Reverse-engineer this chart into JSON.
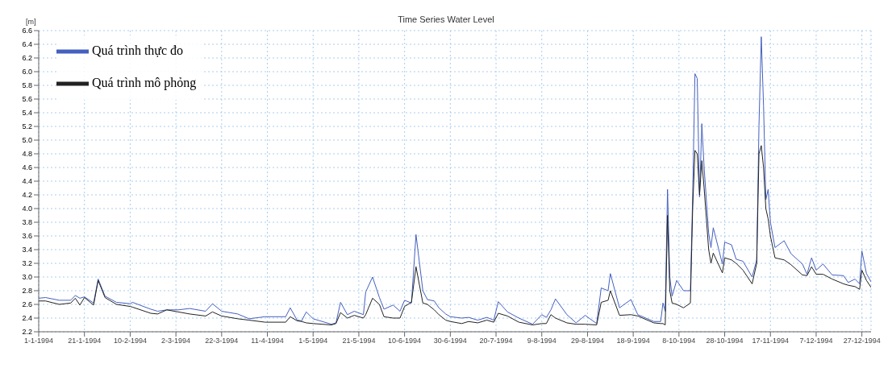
{
  "chart_data": {
    "type": "line",
    "title": "Time Series Water Level",
    "ylabel": "[m]",
    "x": [
      "1994-01-01",
      "1994-01-04",
      "1994-01-10",
      "1994-01-15",
      "1994-01-17",
      "1994-01-19",
      "1994-01-21",
      "1994-01-25",
      "1994-01-27",
      "1994-01-30",
      "1994-02-04",
      "1994-02-10",
      "1994-02-11",
      "1994-02-19",
      "1994-02-22",
      "1994-02-26",
      "1994-03-03",
      "1994-03-08",
      "1994-03-15",
      "1994-03-18",
      "1994-03-22",
      "1994-03-29",
      "1994-04-03",
      "1994-04-10",
      "1994-04-14",
      "1994-04-19",
      "1994-04-21",
      "1994-04-24",
      "1994-04-26",
      "1994-04-28",
      "1994-05-01",
      "1994-05-09",
      "1994-05-11",
      "1994-05-13",
      "1994-05-16",
      "1994-05-19",
      "1994-05-23",
      "1994-05-24",
      "1994-05-27",
      "1994-05-30",
      "1994-06-01",
      "1994-06-05",
      "1994-06-08",
      "1994-06-10",
      "1994-06-13",
      "1994-06-15",
      "1994-06-18",
      "1994-06-20",
      "1994-06-23",
      "1994-06-25",
      "1994-06-28",
      "1994-06-30",
      "1994-07-05",
      "1994-07-08",
      "1994-07-12",
      "1994-07-16",
      "1994-07-19",
      "1994-07-21",
      "1994-07-25",
      "1994-07-30",
      "1994-08-05",
      "1994-08-09",
      "1994-08-11",
      "1994-08-13",
      "1994-08-15",
      "1994-08-20",
      "1994-08-24",
      "1994-08-28",
      "1994-09-02",
      "1994-09-04",
      "1994-09-07",
      "1994-09-08",
      "1994-09-12",
      "1994-09-17",
      "1994-09-20",
      "1994-09-27",
      "1994-09-30",
      "1994-10-01",
      "1994-10-02",
      "1994-10-03",
      "1994-10-04",
      "1994-10-05",
      "1994-10-07",
      "1994-10-10",
      "1994-10-13",
      "1994-10-14",
      "1994-10-15",
      "1994-10-16",
      "1994-10-17",
      "1994-10-18",
      "1994-10-19",
      "1994-10-21",
      "1994-10-22",
      "1994-10-23",
      "1994-10-27",
      "1994-10-28",
      "1994-10-31",
      "1994-11-02",
      "1994-11-05",
      "1994-11-09",
      "1994-11-11",
      "1994-11-12",
      "1994-11-13",
      "1994-11-14",
      "1994-11-15",
      "1994-11-16",
      "1994-11-17",
      "1994-11-19",
      "1994-11-23",
      "1994-11-26",
      "1994-12-01",
      "1994-12-03",
      "1994-12-05",
      "1994-12-07",
      "1994-12-10",
      "1994-12-14",
      "1994-12-19",
      "1994-12-21",
      "1994-12-24",
      "1994-12-26",
      "1994-12-27",
      "1994-12-29",
      "1994-12-31"
    ],
    "series": [
      {
        "name": "Quá trình thực đo",
        "color": "#4460c0",
        "values": [
          2.69,
          2.7,
          2.66,
          2.66,
          2.73,
          2.69,
          2.71,
          2.62,
          2.97,
          2.72,
          2.63,
          2.61,
          2.63,
          2.53,
          2.5,
          2.52,
          2.52,
          2.54,
          2.5,
          2.61,
          2.5,
          2.46,
          2.39,
          2.42,
          2.42,
          2.42,
          2.55,
          2.37,
          2.36,
          2.49,
          2.39,
          2.31,
          2.33,
          2.63,
          2.45,
          2.5,
          2.45,
          2.78,
          3.0,
          2.7,
          2.53,
          2.59,
          2.5,
          2.66,
          2.62,
          3.62,
          2.8,
          2.67,
          2.65,
          2.55,
          2.46,
          2.42,
          2.4,
          2.41,
          2.37,
          2.41,
          2.37,
          2.64,
          2.49,
          2.4,
          2.31,
          2.45,
          2.41,
          2.52,
          2.68,
          2.45,
          2.33,
          2.44,
          2.32,
          2.84,
          2.8,
          3.05,
          2.55,
          2.67,
          2.45,
          2.35,
          2.35,
          2.62,
          2.5,
          4.28,
          3.0,
          2.72,
          2.95,
          2.8,
          2.8,
          4.2,
          5.97,
          5.9,
          4.17,
          5.24,
          4.6,
          3.64,
          3.43,
          3.72,
          3.19,
          3.51,
          3.47,
          3.26,
          3.23,
          3.0,
          3.25,
          5.22,
          6.51,
          5.5,
          4.13,
          4.28,
          3.8,
          3.43,
          3.53,
          3.34,
          3.19,
          3.04,
          3.28,
          3.1,
          3.19,
          3.03,
          3.02,
          2.92,
          2.97,
          2.9,
          3.38,
          3.05,
          2.93
        ]
      },
      {
        "name": "Quá trình mô phỏng",
        "color": "#222222",
        "values": [
          2.65,
          2.65,
          2.6,
          2.62,
          2.69,
          2.59,
          2.7,
          2.59,
          2.95,
          2.7,
          2.6,
          2.57,
          2.56,
          2.47,
          2.46,
          2.52,
          2.49,
          2.46,
          2.43,
          2.49,
          2.43,
          2.39,
          2.37,
          2.34,
          2.34,
          2.34,
          2.42,
          2.36,
          2.35,
          2.33,
          2.32,
          2.3,
          2.32,
          2.48,
          2.4,
          2.44,
          2.4,
          2.45,
          2.69,
          2.6,
          2.42,
          2.4,
          2.4,
          2.57,
          2.63,
          3.15,
          2.62,
          2.6,
          2.52,
          2.45,
          2.37,
          2.35,
          2.32,
          2.35,
          2.33,
          2.37,
          2.34,
          2.47,
          2.43,
          2.34,
          2.3,
          2.32,
          2.32,
          2.45,
          2.4,
          2.33,
          2.31,
          2.31,
          2.3,
          2.63,
          2.66,
          2.8,
          2.44,
          2.45,
          2.43,
          2.33,
          2.32,
          2.32,
          2.3,
          3.9,
          2.8,
          2.62,
          2.6,
          2.55,
          2.62,
          4.0,
          4.85,
          4.8,
          4.2,
          4.7,
          4.3,
          3.4,
          3.2,
          3.35,
          3.06,
          3.28,
          3.25,
          3.2,
          3.1,
          2.9,
          3.2,
          4.8,
          4.92,
          4.6,
          4.0,
          3.85,
          3.6,
          3.28,
          3.25,
          3.18,
          3.03,
          3.02,
          3.15,
          3.04,
          3.04,
          2.97,
          2.9,
          2.88,
          2.86,
          2.82,
          3.1,
          2.95,
          2.85
        ]
      }
    ],
    "xlim": [
      "1994-01-01",
      "1994-12-31"
    ],
    "xticks": [
      {
        "value": "1994-01-01",
        "label": "1-1-1994"
      },
      {
        "value": "1994-01-21",
        "label": "21-1-1994"
      },
      {
        "value": "1994-02-10",
        "label": "10-2-1994"
      },
      {
        "value": "1994-03-02",
        "label": "2-3-1994"
      },
      {
        "value": "1994-03-22",
        "label": "22-3-1994"
      },
      {
        "value": "1994-04-11",
        "label": "11-4-1994"
      },
      {
        "value": "1994-05-01",
        "label": "1-5-1994"
      },
      {
        "value": "1994-05-21",
        "label": "21-5-1994"
      },
      {
        "value": "1994-06-10",
        "label": "10-6-1994"
      },
      {
        "value": "1994-06-30",
        "label": "30-6-1994"
      },
      {
        "value": "1994-07-20",
        "label": "20-7-1994"
      },
      {
        "value": "1994-08-09",
        "label": "9-8-1994"
      },
      {
        "value": "1994-08-29",
        "label": "29-8-1994"
      },
      {
        "value": "1994-09-18",
        "label": "18-9-1994"
      },
      {
        "value": "1994-10-08",
        "label": "8-10-1994"
      },
      {
        "value": "1994-10-28",
        "label": "28-10-1994"
      },
      {
        "value": "1994-11-17",
        "label": "17-11-1994"
      },
      {
        "value": "1994-12-07",
        "label": "7-12-1994"
      },
      {
        "value": "1994-12-27",
        "label": "27-12-1994"
      }
    ],
    "ylim": [
      2.2,
      6.6
    ],
    "yticks": [
      2.2,
      2.4,
      2.6,
      2.8,
      {
        "value": 3,
        "label": "3.0"
      },
      3.2,
      3.4,
      3.6,
      3.8,
      {
        "value": 4,
        "label": "4.0"
      },
      4.2,
      4.4,
      4.6,
      4.8,
      {
        "value": 5,
        "label": "5.0"
      },
      5.2,
      5.4,
      5.6,
      5.8,
      {
        "value": 6,
        "label": "6.0"
      },
      6.2,
      6.4,
      6.6
    ],
    "grid": true,
    "legend": "top left",
    "marker": "none",
    "line_style": "solid"
  }
}
